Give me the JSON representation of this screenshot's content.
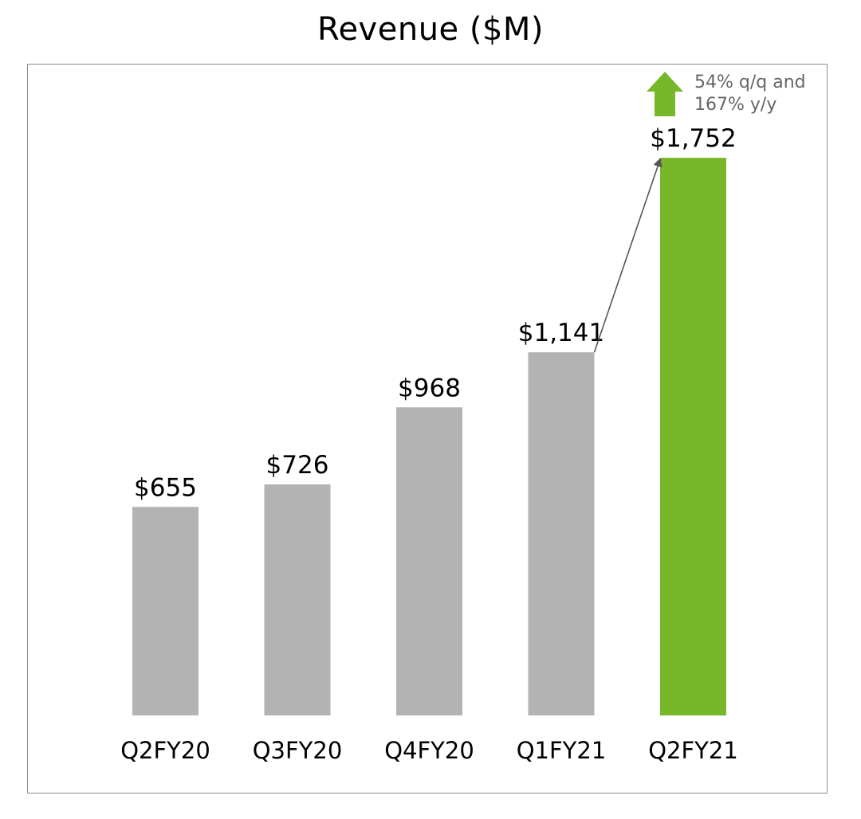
{
  "chart_data": {
    "type": "bar",
    "title": "Revenue ($M)",
    "categories": [
      "Q2FY20",
      "Q3FY20",
      "Q4FY20",
      "Q1FY21",
      "Q2FY21"
    ],
    "values": [
      655,
      726,
      968,
      1141,
      1752
    ],
    "value_labels": [
      "$655",
      "$726",
      "$968",
      "$1,141",
      "$1,752"
    ],
    "colors": [
      "#b3b3b3",
      "#b3b3b3",
      "#b3b3b3",
      "#b3b3b3",
      "#76b82a"
    ],
    "grid": false,
    "legend": "none",
    "annotation": {
      "lines": [
        "54% q/q and",
        "167% y/y"
      ],
      "icon": "up-arrow-icon",
      "icon_color": "#76b82a",
      "text_color": "#666666",
      "from_category": "Q1FY21",
      "to_category": "Q2FY21"
    }
  }
}
